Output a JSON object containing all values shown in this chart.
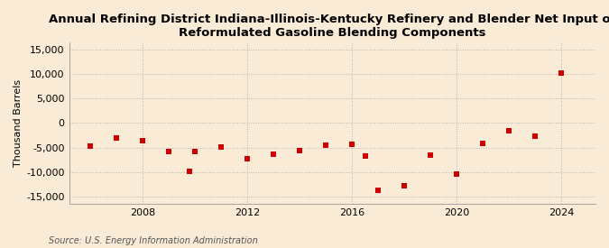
{
  "title": "Annual Refining District Indiana-Illinois-Kentucky Refinery and Blender Net Input of\nReformulated Gasoline Blending Components",
  "ylabel": "Thousand Barrels",
  "source": "Source: U.S. Energy Information Administration",
  "background_color": "#faebd7",
  "plot_background_color": "#faebd7",
  "data_points": [
    {
      "year": 2006,
      "value": -4700
    },
    {
      "year": 2007,
      "value": -3100
    },
    {
      "year": 2008,
      "value": -3600
    },
    {
      "year": 2009,
      "value": -5900
    },
    {
      "year": 2009.8,
      "value": -9800
    },
    {
      "year": 2010,
      "value": -5800
    },
    {
      "year": 2011,
      "value": -4900
    },
    {
      "year": 2012,
      "value": -7300
    },
    {
      "year": 2013,
      "value": -6400
    },
    {
      "year": 2014,
      "value": -5700
    },
    {
      "year": 2015,
      "value": -4600
    },
    {
      "year": 2016,
      "value": -4300
    },
    {
      "year": 2016.5,
      "value": -6700
    },
    {
      "year": 2017,
      "value": -13700
    },
    {
      "year": 2018,
      "value": -12800
    },
    {
      "year": 2019,
      "value": -6500
    },
    {
      "year": 2020,
      "value": -10400
    },
    {
      "year": 2021,
      "value": -4100
    },
    {
      "year": 2022,
      "value": -1600
    },
    {
      "year": 2023,
      "value": -2600
    },
    {
      "year": 2024,
      "value": 10300
    }
  ],
  "marker_color": "#cc0000",
  "marker": "s",
  "marker_size": 4,
  "xlim": [
    2005.2,
    2025.3
  ],
  "ylim": [
    -16500,
    16500
  ],
  "yticks": [
    -15000,
    -10000,
    -5000,
    0,
    5000,
    10000,
    15000
  ],
  "xticks": [
    2008,
    2012,
    2016,
    2020,
    2024
  ],
  "grid_color": "#b0b0b0",
  "grid_style": ":",
  "title_fontsize": 9.5,
  "ylabel_fontsize": 8,
  "tick_fontsize": 8,
  "source_fontsize": 7
}
